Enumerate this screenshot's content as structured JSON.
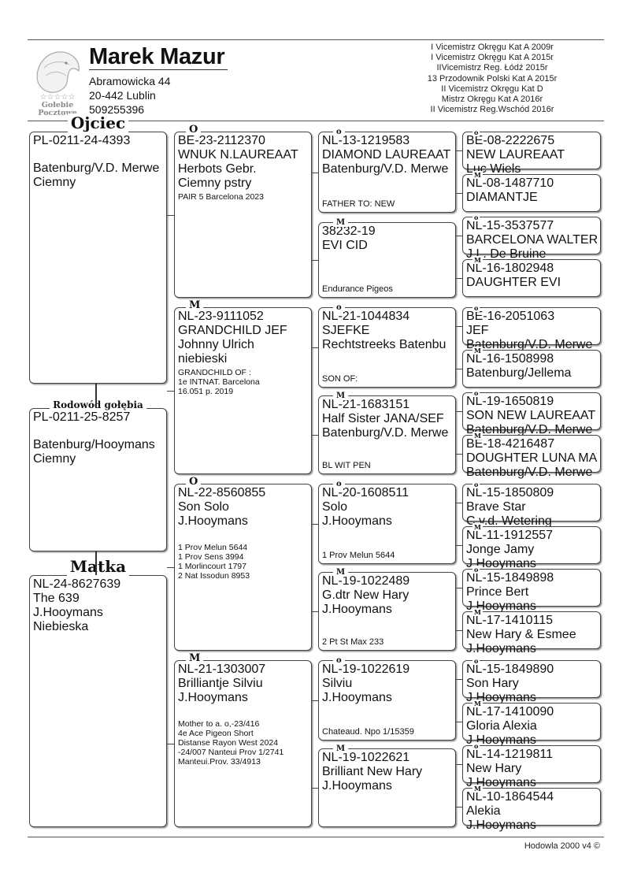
{
  "header": {
    "owner_name": "Marek Mazur",
    "address_street": "Abramowicka 44",
    "address_city": "20-442 Lublin",
    "phone": "509255396",
    "logo_text": [
      "Gołebie",
      "Pocztowe"
    ],
    "achievements": [
      "I Vicemistrz Okręgu Kat A  2009r",
      "I Vicemistrz Okręgu Kat A  2015r",
      "IIVicemistrz Reg. Łódź 2015r",
      "13 Przodownik Polski Kat A 2015r",
      "II Vicemistrz Okręgu Kat D",
      "Mistrz Okręgu Kat A 2016r",
      "II Vicemistrz Reg.Wschód 2016r"
    ]
  },
  "col1": [
    {
      "label": "Ojciec",
      "ring": "PL-0211-24-4393",
      "lines": [
        "Batenburg/V.D. Merwe",
        "Ciemny"
      ]
    },
    {
      "label": "Rodowód gołębia",
      "ring": "PL-0211-25-8257",
      "lines": [
        "Batenburg/Hooymans",
        "Ciemny"
      ]
    },
    {
      "label": "Matka",
      "ring": "NL-24-8627639",
      "lines": [
        "The 639",
        "J.Hooymans",
        "Niebieska"
      ]
    }
  ],
  "col2": [
    {
      "label": "O",
      "ring": "BE-23-2112370",
      "lines": [
        "WNUK N.LAUREAAT",
        "Herbots Gebr.",
        "Ciemny pstry"
      ],
      "notes": [
        "PAIR 5 Barcelona 2023"
      ]
    },
    {
      "label": "M",
      "ring": "NL-23-9111052",
      "lines": [
        "GRANDCHILD JEF",
        "Johnny Ulrich",
        "niebieski"
      ],
      "notes": [
        "GRANDCHILD OF :",
        "1e INTNAT. Barcelona",
        "16.051 p. 2019"
      ]
    },
    {
      "label": "O",
      "ring": "NL-22-8560855",
      "lines": [
        "Son Solo",
        "J.Hooymans"
      ],
      "notes": [
        "1 Prov Melun  5644",
        "1 Prov Sens   3994",
        "1 Morlincourt  1797",
        "2 Nat Issodun 8953"
      ]
    },
    {
      "label": "M",
      "ring": "NL-21-1303007",
      "lines": [
        "Brilliantje Silviu",
        "J.Hooymans"
      ],
      "notes": [
        "Mother to a. o,-23/416",
        "4e Ace Pigeon Short",
        "Distanse Rayon West 2024",
        "-24/007 Nanteui Prov 1/2741",
        "Manteui.Prov. 33/4913"
      ]
    }
  ],
  "col3": [
    {
      "label": "o",
      "ring": "NL-13-1219583",
      "lines": [
        "DIAMOND LAUREAAT",
        "Batenburg/V.D. Merwe"
      ],
      "bottom": "FATHER TO: NEW"
    },
    {
      "label": "M",
      "ring": "38232-19",
      "lines": [
        "EVI CID"
      ],
      "bottom": "Endurance Pigeos"
    },
    {
      "label": "o",
      "ring": "NL-21-1044834",
      "lines": [
        "SJEFKE",
        "Rechtstreeks Batenbu"
      ],
      "bottom": "SON OF:"
    },
    {
      "label": "M",
      "ring": "NL-21-1683151",
      "lines": [
        "Half Sister JANA/SEF",
        "Batenburg/V.D. Merwe"
      ],
      "bottom": "BL WIT PEN"
    },
    {
      "label": "o",
      "ring": "NL-20-1608511",
      "lines": [
        "Solo",
        "J.Hooymans"
      ],
      "bottom": "1 Prov Melun  5644"
    },
    {
      "label": "M",
      "ring": "NL-19-1022489",
      "lines": [
        "G.dtr New Hary",
        "J.Hooymans"
      ],
      "bottom": "2 Pt St Max   233"
    },
    {
      "label": "o",
      "ring": "NL-19-1022619",
      "lines": [
        "Silviu",
        "J.Hooymans"
      ],
      "bottom": "Chateaud. Npo  1/15359"
    },
    {
      "label": "M",
      "ring": "NL-19-1022621",
      "lines": [
        "Brilliant New Hary",
        "J.Hooymans"
      ],
      "bottom": ""
    }
  ],
  "col4": [
    {
      "label": "o",
      "ring": "BE-08-2222675",
      "lines": [
        "NEW LAUREAAT",
        "Luc Wiels"
      ]
    },
    {
      "label": "M",
      "ring": "NL-08-1487710",
      "lines": [
        "DIAMANTJE"
      ]
    },
    {
      "label": "o",
      "ring": "NL-15-3537577",
      "lines": [
        "BARCELONA WALTER",
        "J.L. De Bruine"
      ]
    },
    {
      "label": "M",
      "ring": "NL-16-1802948",
      "lines": [
        "DAUGHTER EVI"
      ]
    },
    {
      "label": "o",
      "ring": "BE-16-2051063",
      "lines": [
        "JEF",
        "Batenburg/V.D. Merwe"
      ]
    },
    {
      "label": "M",
      "ring": "NL-16-1508998",
      "lines": [
        "",
        "Batenburg/Jellema"
      ]
    },
    {
      "label": "o",
      "ring": "NL-19-1650819",
      "lines": [
        "SON NEW LAUREAAT",
        "Batenburg/V.D. Merwe"
      ]
    },
    {
      "label": "M",
      "ring": "BE-18-4216487",
      "lines": [
        "DOUGHTER LUNA MAY",
        "Batenburg/V.D. Merwe"
      ]
    },
    {
      "label": "o",
      "ring": "NL-15-1850809",
      "lines": [
        "Brave Star",
        "C.v.d. Wetering"
      ]
    },
    {
      "label": "M",
      "ring": "NL-11-1912557",
      "lines": [
        "Jonge Jamy",
        "J.Hooymans"
      ]
    },
    {
      "label": "o",
      "ring": "NL-15-1849898",
      "lines": [
        "Prince Bert",
        "J.Hooymans"
      ]
    },
    {
      "label": "M",
      "ring": "NL-17-1410115",
      "lines": [
        "New Hary & Esmee",
        "J.Hooymans"
      ]
    },
    {
      "label": "o",
      "ring": "NL-15-1849890",
      "lines": [
        "Son Hary",
        "J.Hooymans"
      ]
    },
    {
      "label": "M",
      "ring": "NL-17-1410090",
      "lines": [
        "Gloria Alexia",
        "J.Hooymans"
      ]
    },
    {
      "label": "o",
      "ring": "NL-14-1219811",
      "lines": [
        "New Hary",
        "J.Hooymans"
      ]
    },
    {
      "label": "M",
      "ring": "NL-10-1864544",
      "lines": [
        "Alekia",
        "J.Hooymans"
      ]
    }
  ],
  "footer": {
    "text": "Hodowla 2000 v4 ©"
  }
}
